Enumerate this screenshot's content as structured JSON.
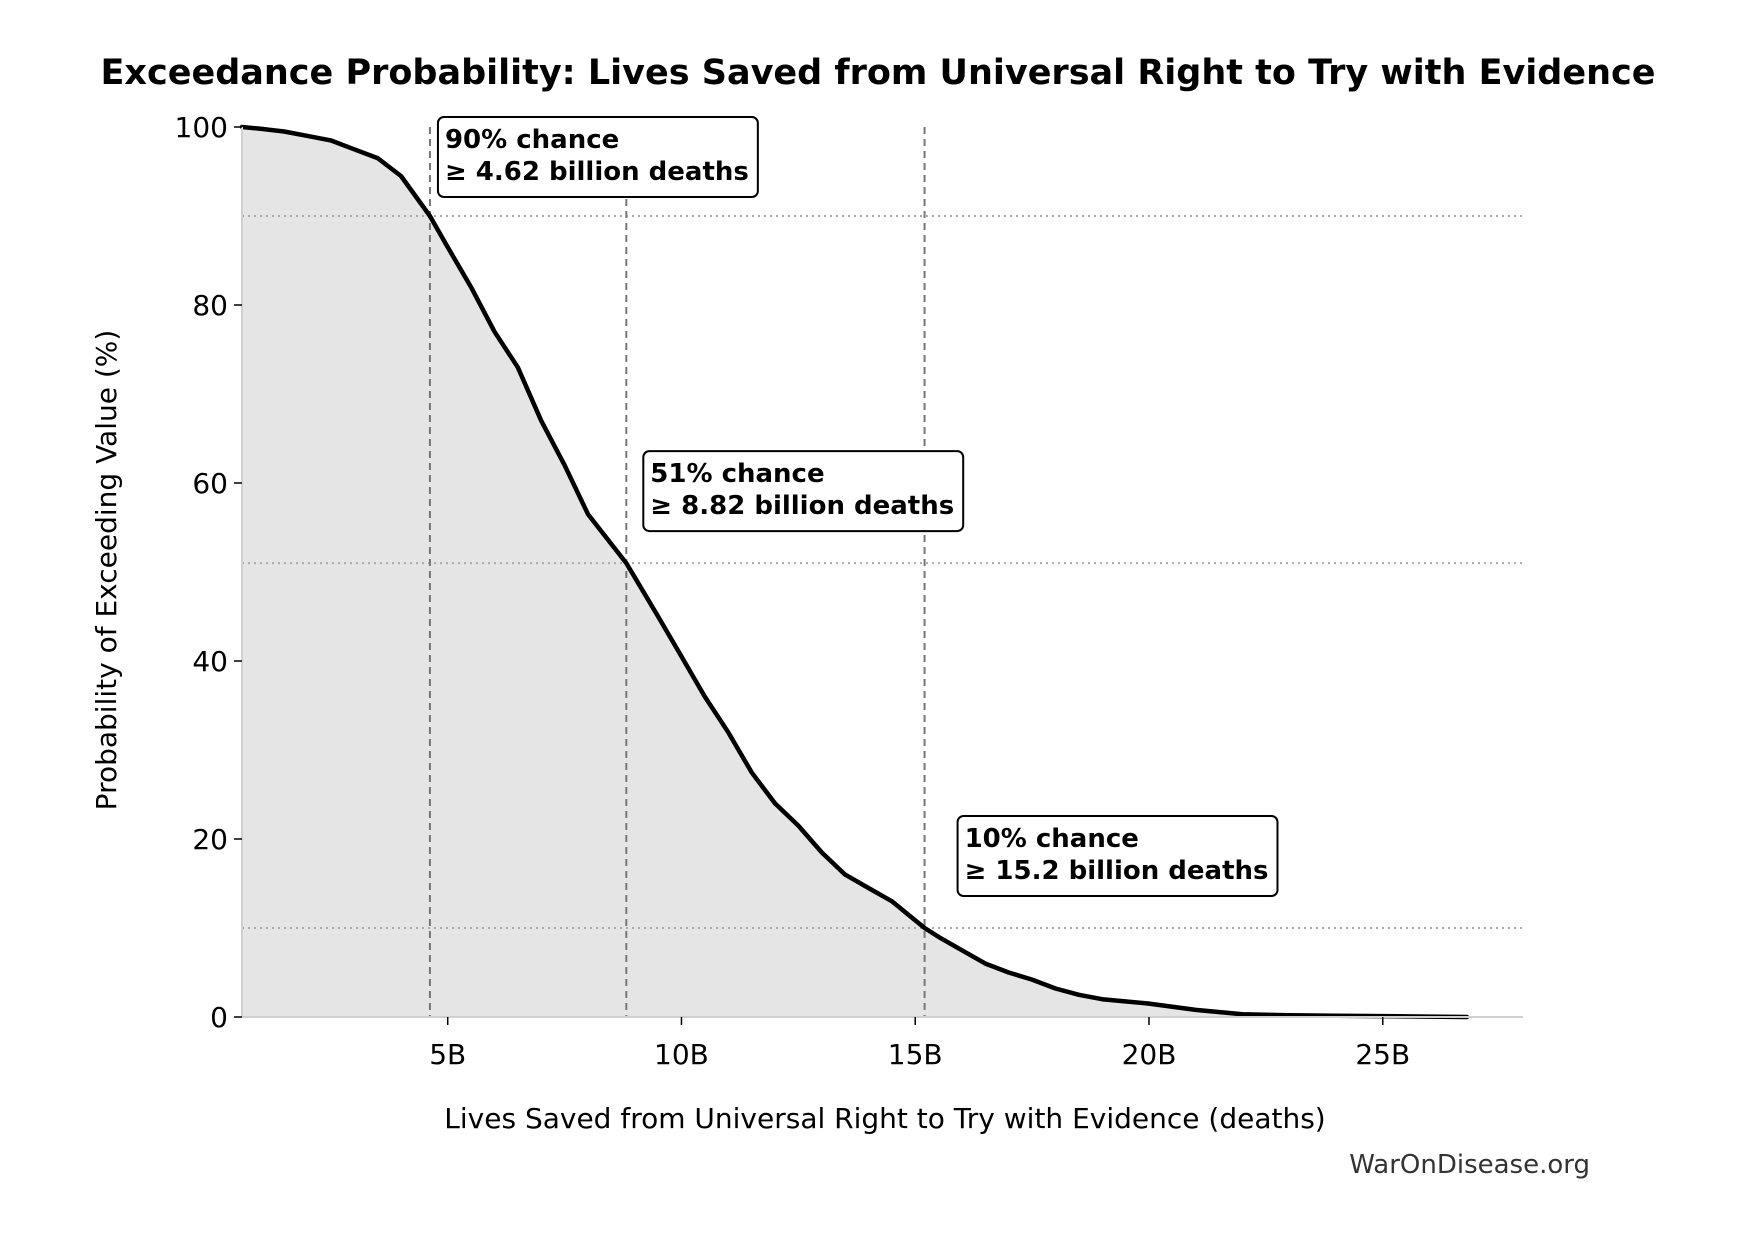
{
  "chart_data": {
    "type": "area",
    "title": "Exceedance Probability: Lives Saved from Universal Right to Try with Evidence",
    "xlabel": "Lives Saved from Universal Right to Try with Evidence (deaths)",
    "ylabel": "Probability of Exceeding Value (%)",
    "xlim": [
      0.6,
      28.0
    ],
    "ylim": [
      0,
      100
    ],
    "x_unit": "billion deaths",
    "x_ticks": [
      5,
      10,
      15,
      20,
      25
    ],
    "x_tick_labels": [
      "5B",
      "10B",
      "15B",
      "20B",
      "25B"
    ],
    "y_ticks": [
      0,
      20,
      40,
      60,
      80,
      100
    ],
    "y_tick_labels": [
      "0",
      "20",
      "40",
      "60",
      "80",
      "100"
    ],
    "grid": false,
    "series": [
      {
        "x": [
          0.6,
          1.0,
          1.5,
          2.0,
          2.5,
          3.0,
          3.5,
          4.0,
          4.62,
          5.0,
          5.5,
          6.0,
          6.5,
          7.0,
          7.5,
          8.0,
          8.82,
          9.5,
          10.0,
          10.5,
          11.0,
          11.5,
          12.0,
          12.5,
          13.0,
          13.5,
          14.0,
          14.5,
          15.2,
          15.5,
          16.0,
          16.5,
          17.0,
          17.5,
          18.0,
          18.5,
          19.0,
          20.0,
          21.0,
          22.0,
          23.0,
          24.0,
          25.0,
          26.0,
          26.8
        ],
        "y": [
          100,
          99.8,
          99.5,
          99.0,
          98.5,
          97.5,
          96.5,
          94.5,
          90,
          86.5,
          82,
          77,
          73,
          67,
          62,
          56.5,
          51,
          45,
          40.5,
          36,
          32,
          27.5,
          24,
          21.5,
          18.5,
          16,
          14.5,
          13,
          10,
          9,
          7.5,
          6,
          5,
          4.2,
          3.2,
          2.5,
          2.0,
          1.5,
          0.8,
          0.3,
          0.2,
          0.15,
          0.1,
          0.05,
          0.0
        ]
      }
    ],
    "reference_lines": {
      "vertical_x": [
        4.62,
        8.82,
        15.2
      ],
      "horizontal_y": [
        90,
        51,
        10
      ]
    },
    "annotations": [
      {
        "line1": "90% chance",
        "line2": "≥ 4.62 billion deaths",
        "x": 4.62,
        "y": 90
      },
      {
        "line1": "51% chance",
        "line2": "≥ 8.82 billion deaths",
        "x": 8.82,
        "y": 51
      },
      {
        "line1": "10% chance",
        "line2": "≥ 15.2 billion deaths",
        "x": 15.2,
        "y": 10
      }
    ],
    "colors": {
      "line": "#000000",
      "fill": "#e5e5e5",
      "reference_vertical": "#777777",
      "reference_horizontal": "#aaaaaa"
    }
  },
  "credit": "WarOnDisease.org"
}
